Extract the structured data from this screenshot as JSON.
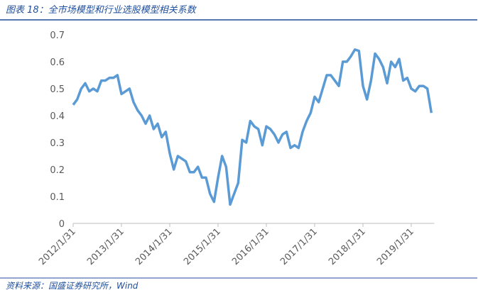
{
  "chart_data": {
    "type": "line",
    "title": "图表 18：全市场模型和行业选股模型相关系数",
    "source": "资料来源：国盛证券研究所，Wind",
    "categories": [
      "2012/1/31",
      null,
      null,
      null,
      null,
      null,
      null,
      null,
      null,
      null,
      null,
      null,
      "2013/1/31",
      null,
      null,
      null,
      null,
      null,
      null,
      null,
      null,
      null,
      null,
      null,
      "2014/1/31",
      null,
      null,
      null,
      null,
      null,
      null,
      null,
      null,
      null,
      null,
      null,
      "2015/1/31",
      null,
      null,
      null,
      null,
      null,
      null,
      null,
      null,
      null,
      null,
      null,
      "2016/1/31",
      null,
      null,
      null,
      null,
      null,
      null,
      null,
      null,
      null,
      null,
      null,
      "2017/1/31",
      null,
      null,
      null,
      null,
      null,
      null,
      null,
      null,
      null,
      null,
      null,
      "2018/1/31",
      null,
      null,
      null,
      null,
      null,
      null,
      null,
      null,
      null,
      null,
      null,
      "2019/1/31",
      null,
      null,
      null,
      null,
      null
    ],
    "series": [
      {
        "color": "#5b9bd5",
        "values": [
          0.44,
          0.46,
          0.5,
          0.52,
          0.49,
          0.5,
          0.49,
          0.53,
          0.53,
          0.54,
          0.54,
          0.55,
          0.48,
          0.49,
          0.5,
          0.45,
          0.42,
          0.4,
          0.37,
          0.4,
          0.35,
          0.37,
          0.32,
          0.34,
          0.26,
          0.2,
          0.25,
          0.24,
          0.23,
          0.19,
          0.19,
          0.21,
          0.17,
          0.17,
          0.11,
          0.08,
          0.17,
          0.25,
          0.21,
          0.07,
          0.11,
          0.15,
          0.31,
          0.3,
          0.38,
          0.36,
          0.35,
          0.29,
          0.36,
          0.35,
          0.33,
          0.3,
          0.33,
          0.34,
          0.28,
          0.29,
          0.28,
          0.34,
          0.38,
          0.41,
          0.47,
          0.45,
          0.5,
          0.55,
          0.55,
          0.53,
          0.51,
          0.6,
          0.6,
          0.62,
          0.645,
          0.64,
          0.51,
          0.46,
          0.53,
          0.63,
          0.61,
          0.58,
          0.52,
          0.6,
          0.58,
          0.61,
          0.53,
          0.54,
          0.5,
          0.49,
          0.51,
          0.51,
          0.5,
          0.41
        ]
      }
    ],
    "ylim": [
      0,
      0.7
    ],
    "yticks": [
      0,
      0.1,
      0.2,
      0.3,
      0.4,
      0.5,
      0.6,
      0.7
    ]
  }
}
